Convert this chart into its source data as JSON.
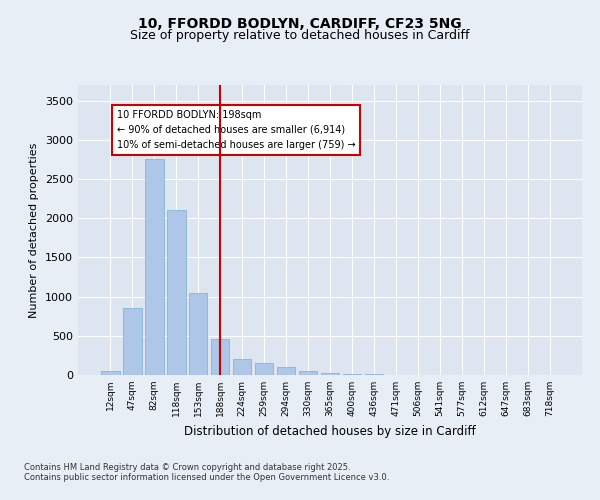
{
  "title_line1": "10, FFORDD BODLYN, CARDIFF, CF23 5NG",
  "title_line2": "Size of property relative to detached houses in Cardiff",
  "xlabel": "Distribution of detached houses by size in Cardiff",
  "ylabel": "Number of detached properties",
  "categories": [
    "12sqm",
    "47sqm",
    "82sqm",
    "118sqm",
    "153sqm",
    "188sqm",
    "224sqm",
    "259sqm",
    "294sqm",
    "330sqm",
    "365sqm",
    "400sqm",
    "436sqm",
    "471sqm",
    "506sqm",
    "541sqm",
    "577sqm",
    "612sqm",
    "647sqm",
    "683sqm",
    "718sqm"
  ],
  "values": [
    50,
    850,
    2750,
    2100,
    1050,
    460,
    200,
    150,
    100,
    50,
    20,
    15,
    10,
    5,
    3,
    2,
    2,
    1,
    1,
    1,
    1
  ],
  "bar_color": "#aec6e8",
  "bar_edge_color": "#7aafd4",
  "vline_x": 5,
  "vline_color": "#cc0000",
  "annotation_text": "10 FFORDD BODLYN: 198sqm\n← 90% of detached houses are smaller (6,914)\n10% of semi-detached houses are larger (759) →",
  "annotation_box_color": "#cc0000",
  "ylim": [
    0,
    3700
  ],
  "yticks": [
    0,
    500,
    1000,
    1500,
    2000,
    2500,
    3000,
    3500
  ],
  "background_color": "#e8eef5",
  "plot_bg_color": "#dde6f0",
  "footer_line1": "Contains HM Land Registry data © Crown copyright and database right 2025.",
  "footer_line2": "Contains public sector information licensed under the Open Government Licence v3.0.",
  "title_fontsize": 10,
  "subtitle_fontsize": 9
}
